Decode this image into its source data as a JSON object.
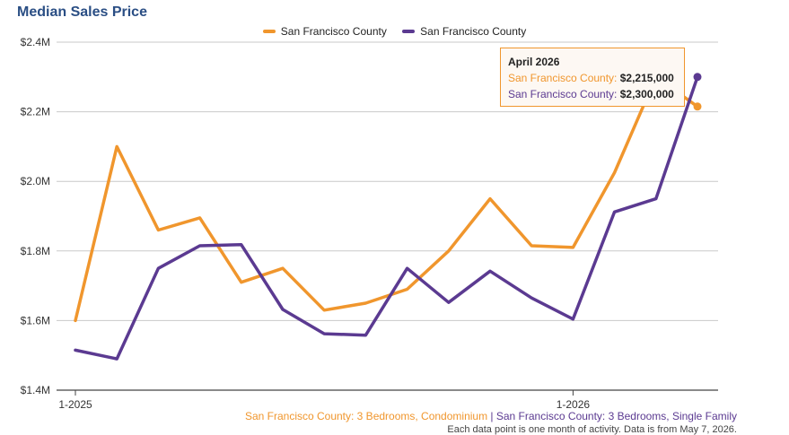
{
  "chart_data": {
    "type": "line",
    "title": "Median Sales Price",
    "x": [
      "1-2025",
      "2-2025",
      "3-2025",
      "4-2025",
      "5-2025",
      "6-2025",
      "7-2025",
      "8-2025",
      "9-2025",
      "10-2025",
      "11-2025",
      "12-2025",
      "1-2026",
      "2-2026",
      "3-2026",
      "4-2026"
    ],
    "x_tick_labels": [
      "1-2025",
      "1-2026"
    ],
    "y_tick_labels": [
      "$1.4M",
      "$1.6M",
      "$1.8M",
      "$2.0M",
      "$2.2M",
      "$2.4M"
    ],
    "ylim": [
      1400000,
      2400000
    ],
    "grid": true,
    "legend_position": "top-center",
    "series": [
      {
        "name": "San Francisco County",
        "color": "#f0962d",
        "values": [
          1600000,
          2100000,
          1860000,
          1895000,
          1710000,
          1750000,
          1630000,
          1650000,
          1690000,
          1800000,
          1950000,
          1815000,
          1810000,
          2025000,
          2300000,
          2215000
        ]
      },
      {
        "name": "San Francisco County",
        "color": "#5b3a91",
        "values": [
          1515000,
          1490000,
          1750000,
          1815000,
          1818000,
          1632000,
          1562000,
          1558000,
          1750000,
          1652000,
          1742000,
          1665000,
          1604000,
          1912000,
          1950000,
          2300000
        ]
      }
    ],
    "tooltip": {
      "title": "April 2026",
      "rows": [
        {
          "label": "San Francisco County:",
          "value": "$2,215,000",
          "color": "#f0962d"
        },
        {
          "label": "San Francisco County:",
          "value": "$2,300,000",
          "color": "#5b3a91"
        }
      ]
    }
  },
  "footer": {
    "series1_label": "San Francisco County: 3 Bedrooms, Condominium",
    "separator": " | ",
    "series2_label": "San Francisco County: 3 Bedrooms, Single Family",
    "note": "Each data point is one month of activity. Data is from May 7, 2026."
  }
}
